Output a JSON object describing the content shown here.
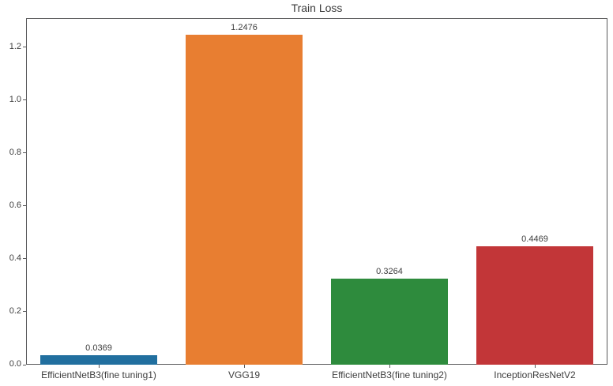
{
  "chart_data": {
    "type": "bar",
    "title": "Train Loss",
    "categories": [
      "EfficientNetB3(fine tuning1)",
      "VGG19",
      "EfficientNetB3(fine tuning2)",
      "InceptionResNetV2"
    ],
    "values": [
      0.0369,
      1.2476,
      0.3264,
      0.4469
    ],
    "value_labels": [
      "0.0369",
      "1.2476",
      "0.3264",
      "0.4469"
    ],
    "bar_colors": [
      "#216f9f",
      "#e87e31",
      "#2e8b3d",
      "#c23638"
    ],
    "xlabel": "",
    "ylabel": "",
    "ylim": [
      0,
      1.31
    ],
    "yticks": [
      0.0,
      0.2,
      0.4,
      0.6,
      0.8,
      1.0,
      1.2
    ],
    "ytick_labels": [
      "0.0",
      "0.2",
      "0.4",
      "0.6",
      "0.8",
      "1.0",
      "1.2"
    ],
    "bar_width_fraction": 0.8,
    "grid": false,
    "legend": null,
    "text_color": "#3d3d3d",
    "spine_color": "#58585a",
    "background_color": "#ffffff"
  }
}
